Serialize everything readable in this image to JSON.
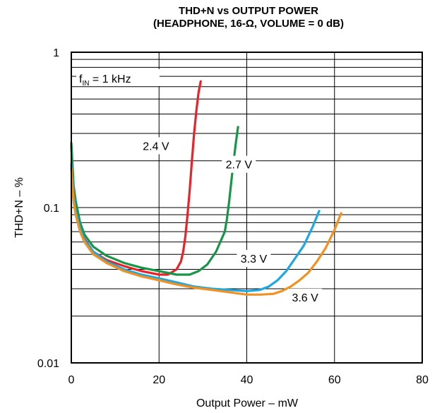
{
  "chart_data": {
    "type": "line",
    "title_line1": "THD+N vs OUTPUT POWER",
    "title_line2": "(HEADPHONE, 16-Ω, VOLUME = 0 dB)",
    "xlabel": "Output Power – mW",
    "ylabel": "THD+N – %",
    "xlim": [
      0,
      80
    ],
    "ylim": [
      0.01,
      1
    ],
    "yscale": "log",
    "grid": true,
    "x_ticks": [
      "0",
      "20",
      "40",
      "60",
      "80"
    ],
    "y_ticks": [
      "0.01",
      "0.1",
      "1"
    ],
    "annotation": {
      "prefix": "f",
      "subscript": "IN",
      "suffix": " = 1 kHz"
    },
    "series": [
      {
        "name": "2.4 V",
        "color": "#e8232a",
        "x": [
          0,
          0.5,
          1,
          2,
          3,
          5,
          8,
          12,
          16,
          20,
          22,
          24,
          25,
          25.5,
          26,
          26.5,
          27,
          27.5,
          28,
          28.5,
          29,
          29.5
        ],
        "y": [
          0.25,
          0.13,
          0.1,
          0.075,
          0.063,
          0.052,
          0.046,
          0.042,
          0.039,
          0.037,
          0.037,
          0.04,
          0.045,
          0.052,
          0.065,
          0.09,
          0.13,
          0.2,
          0.3,
          0.42,
          0.55,
          0.65
        ]
      },
      {
        "name": "2.7 V",
        "color": "#179647",
        "x": [
          0,
          0.5,
          1,
          2,
          3,
          5,
          8,
          12,
          16,
          20,
          24,
          27,
          29,
          31,
          33,
          35,
          35.5,
          36,
          36.5,
          37,
          37.5,
          38
        ],
        "y": [
          0.26,
          0.14,
          0.11,
          0.08,
          0.067,
          0.056,
          0.049,
          0.044,
          0.041,
          0.039,
          0.037,
          0.037,
          0.039,
          0.043,
          0.052,
          0.07,
          0.085,
          0.11,
          0.15,
          0.2,
          0.26,
          0.33
        ]
      },
      {
        "name": "3.3 V",
        "color": "#1ca8e3",
        "x": [
          0,
          0.5,
          1,
          2,
          3,
          5,
          8,
          12,
          16,
          20,
          24,
          28,
          32,
          36,
          40,
          43,
          45,
          47,
          49,
          51,
          53,
          55,
          56.5
        ],
        "y": [
          0.19,
          0.12,
          0.095,
          0.074,
          0.062,
          0.052,
          0.045,
          0.04,
          0.037,
          0.035,
          0.033,
          0.031,
          0.03,
          0.0295,
          0.029,
          0.0295,
          0.031,
          0.034,
          0.039,
          0.047,
          0.057,
          0.075,
          0.095
        ]
      },
      {
        "name": "3.6 V",
        "color": "#f39120",
        "x": [
          0,
          0.5,
          1,
          2,
          3,
          5,
          8,
          12,
          16,
          20,
          24,
          28,
          32,
          36,
          40,
          43,
          46,
          48,
          50,
          52,
          54,
          56,
          58,
          60,
          61.5
        ],
        "y": [
          0.18,
          0.11,
          0.09,
          0.07,
          0.06,
          0.05,
          0.044,
          0.039,
          0.036,
          0.034,
          0.032,
          0.0305,
          0.0295,
          0.0285,
          0.0275,
          0.0275,
          0.0278,
          0.029,
          0.031,
          0.034,
          0.038,
          0.045,
          0.055,
          0.072,
          0.092
        ]
      }
    ],
    "series_labels": [
      "2.4 V",
      "2.7 V",
      "3.3 V",
      "3.6 V"
    ]
  }
}
